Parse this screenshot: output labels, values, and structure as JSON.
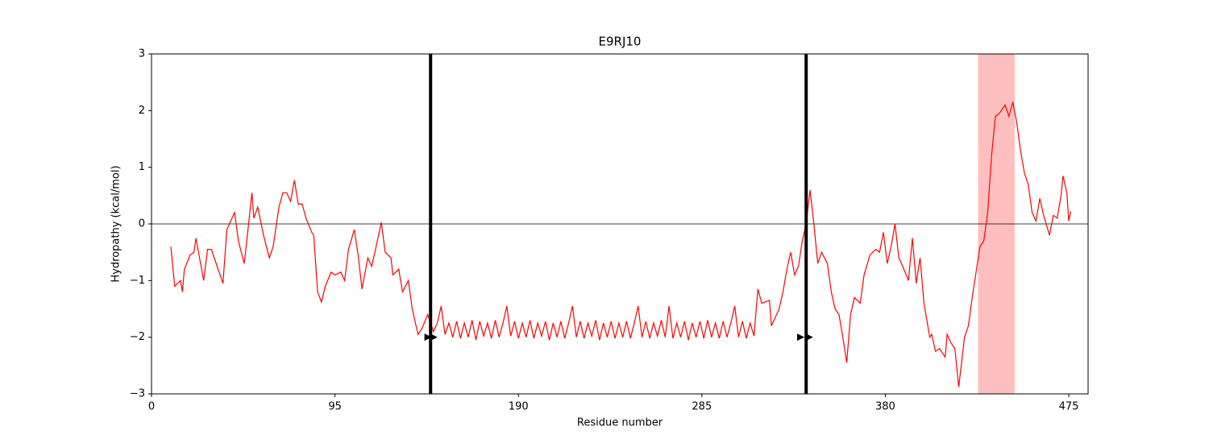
{
  "chart_data": {
    "type": "line",
    "title": "E9RJ10",
    "xlabel": "Residue number",
    "ylabel": "Hydropathy (kcal/mol)",
    "xlim": [
      0,
      485
    ],
    "ylim": [
      -3,
      3
    ],
    "xticks": [
      0,
      95,
      190,
      285,
      380,
      475
    ],
    "yticks": [
      {
        "value": -3,
        "label": "−3"
      },
      {
        "value": -2,
        "label": "−2"
      },
      {
        "value": -1,
        "label": "−1"
      },
      0,
      1,
      2,
      3
    ],
    "hline": 0,
    "vlines": [
      144.5,
      339
    ],
    "vline_color": "#000000",
    "span": [
      428,
      447
    ],
    "span_color": "#ffbfbf",
    "markers": {
      "x": [
        143,
        146,
        336,
        340.5
      ],
      "y": [
        -2,
        -2,
        -2,
        -2
      ],
      "color": "#000000"
    },
    "x": [
      10,
      12,
      15,
      16,
      17,
      20,
      22,
      23,
      27,
      29,
      31,
      34,
      37,
      39,
      43,
      45,
      48,
      49,
      52,
      53,
      55,
      58,
      61,
      63,
      66,
      68,
      70,
      72,
      74,
      76,
      78,
      80,
      83,
      84,
      86,
      88,
      90,
      93,
      95,
      98,
      100,
      102,
      105,
      107,
      109,
      112,
      114,
      116,
      119,
      121,
      124,
      125,
      128,
      130,
      133,
      135,
      138,
      140,
      143,
      146,
      148,
      150,
      152,
      154,
      156,
      158,
      160,
      162,
      164,
      166,
      168,
      170,
      172,
      174,
      176,
      178,
      180,
      182,
      184,
      186,
      188,
      190,
      192,
      194,
      196,
      198,
      200,
      202,
      204,
      206,
      208,
      210,
      212,
      214,
      216,
      218,
      220,
      222,
      224,
      226,
      228,
      230,
      232,
      234,
      236,
      238,
      240,
      242,
      244,
      246,
      248,
      250,
      252,
      254,
      256,
      258,
      260,
      262,
      264,
      266,
      268,
      270,
      272,
      274,
      276,
      278,
      280,
      282,
      284,
      286,
      288,
      290,
      292,
      294,
      296,
      298,
      300,
      302,
      304,
      306,
      308,
      310,
      312,
      314,
      316,
      320,
      321,
      325,
      327,
      329,
      331,
      333,
      335,
      337,
      339,
      341,
      343,
      345,
      347,
      350,
      352,
      354,
      356,
      358,
      360,
      362,
      364,
      367,
      369,
      372,
      375,
      377,
      379,
      381,
      383,
      385,
      387,
      389,
      392,
      394,
      396,
      398,
      400,
      403,
      404,
      406,
      408,
      411,
      412,
      414,
      416,
      418,
      421,
      423,
      425,
      427,
      429,
      431,
      433,
      435,
      437,
      439,
      442,
      444,
      446,
      448,
      450,
      452,
      454,
      456,
      458,
      460,
      462,
      465,
      467,
      469,
      471,
      472,
      474,
      475,
      476
    ],
    "series": [
      {
        "color": "#ff0000",
        "values": [
          -0.4,
          -1.1,
          -1.0,
          -1.2,
          -0.8,
          -0.55,
          -0.5,
          -0.25,
          -1.0,
          -0.45,
          -0.45,
          -0.75,
          -1.05,
          -0.1,
          0.2,
          -0.3,
          -0.7,
          -0.4,
          0.55,
          0.1,
          0.3,
          -0.2,
          -0.6,
          -0.4,
          0.3,
          0.55,
          0.55,
          0.4,
          0.77,
          0.35,
          0.35,
          0.1,
          -0.15,
          -0.2,
          -1.2,
          -1.38,
          -1.1,
          -0.85,
          -0.9,
          -0.85,
          -1.0,
          -0.45,
          -0.1,
          -0.55,
          -1.15,
          -0.6,
          -0.75,
          -0.45,
          0.03,
          -0.5,
          -0.6,
          -0.9,
          -0.8,
          -1.2,
          -1.0,
          -1.5,
          -1.95,
          -1.85,
          -1.6,
          -1.9,
          -1.75,
          -1.45,
          -1.95,
          -1.75,
          -2.0,
          -1.72,
          -2.02,
          -1.75,
          -2.0,
          -1.7,
          -2.05,
          -1.72,
          -1.98,
          -1.75,
          -2.02,
          -1.7,
          -2.0,
          -1.75,
          -1.45,
          -1.98,
          -1.72,
          -2.02,
          -1.75,
          -2.0,
          -1.7,
          -2.02,
          -1.75,
          -1.98,
          -1.72,
          -2.05,
          -1.75,
          -2.0,
          -1.72,
          -2.02,
          -1.75,
          -1.45,
          -2.0,
          -1.72,
          -2.02,
          -1.75,
          -1.98,
          -1.7,
          -2.05,
          -1.75,
          -2.0,
          -1.72,
          -2.02,
          -1.75,
          -2.0,
          -1.72,
          -2.02,
          -1.75,
          -1.45,
          -2.0,
          -1.72,
          -2.02,
          -1.75,
          -1.98,
          -1.7,
          -2.0,
          -1.45,
          -2.02,
          -1.75,
          -2.0,
          -1.72,
          -2.05,
          -1.75,
          -2.0,
          -1.72,
          -2.02,
          -1.7,
          -2.0,
          -1.75,
          -2.02,
          -1.72,
          -2.0,
          -1.75,
          -1.45,
          -2.0,
          -1.72,
          -2.02,
          -1.75,
          -1.98,
          -1.15,
          -1.4,
          -1.35,
          -1.8,
          -1.5,
          -1.2,
          -0.8,
          -0.5,
          -0.9,
          -0.75,
          -0.3,
          0.0,
          0.6,
          0.0,
          -0.7,
          -0.5,
          -0.7,
          -1.2,
          -1.5,
          -1.6,
          -2.0,
          -2.45,
          -1.6,
          -1.3,
          -1.4,
          -0.9,
          -0.55,
          -0.45,
          -0.5,
          -0.15,
          -0.7,
          -0.4,
          0.0,
          -0.6,
          -0.75,
          -1.0,
          -0.25,
          -1.05,
          -0.6,
          -1.4,
          -2.0,
          -1.95,
          -2.25,
          -2.2,
          -2.35,
          -1.95,
          -2.1,
          -2.2,
          -2.88,
          -2.0,
          -1.8,
          -1.3,
          -0.85,
          -0.4,
          -0.3,
          0.2,
          1.2,
          1.9,
          1.95,
          2.1,
          1.9,
          2.15,
          1.8,
          1.3,
          0.9,
          0.7,
          0.2,
          0.05,
          0.45,
          0.15,
          -0.2,
          0.15,
          0.1,
          0.5,
          0.85,
          0.55,
          0.05,
          0.22
        ]
      }
    ]
  }
}
